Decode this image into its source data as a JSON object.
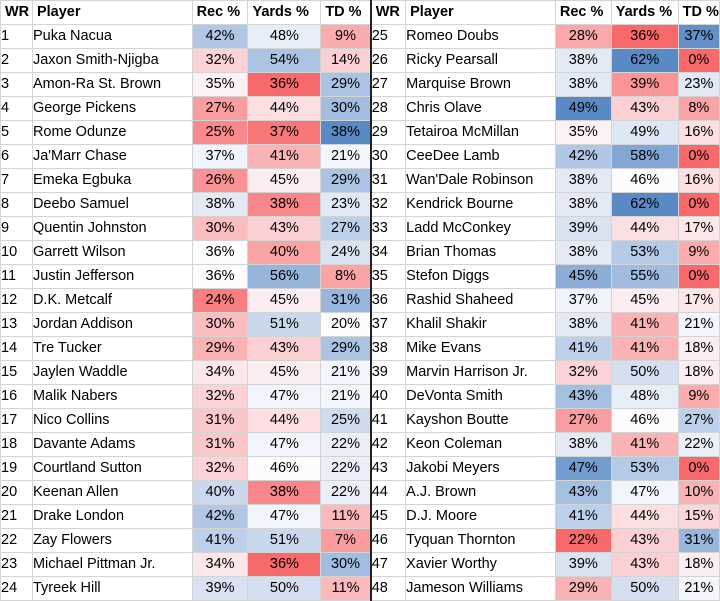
{
  "headers": [
    "WR",
    "Player",
    "Rec %",
    "Yards %",
    "TD %"
  ],
  "rows": [
    {
      "wr": "1",
      "player": "Puka Nacua",
      "rec": "42%",
      "yards": "48%",
      "td": "9%"
    },
    {
      "wr": "2",
      "player": "Jaxon Smith-Njigba",
      "rec": "32%",
      "yards": "54%",
      "td": "14%"
    },
    {
      "wr": "3",
      "player": "Amon-Ra St. Brown",
      "rec": "35%",
      "yards": "36%",
      "td": "29%"
    },
    {
      "wr": "4",
      "player": "George Pickens",
      "rec": "27%",
      "yards": "44%",
      "td": "30%"
    },
    {
      "wr": "5",
      "player": "Rome Odunze",
      "rec": "25%",
      "yards": "37%",
      "td": "38%"
    },
    {
      "wr": "6",
      "player": "Ja'Marr Chase",
      "rec": "37%",
      "yards": "41%",
      "td": "21%"
    },
    {
      "wr": "7",
      "player": "Emeka Egbuka",
      "rec": "26%",
      "yards": "45%",
      "td": "29%"
    },
    {
      "wr": "8",
      "player": "Deebo Samuel",
      "rec": "38%",
      "yards": "38%",
      "td": "23%"
    },
    {
      "wr": "9",
      "player": "Quentin Johnston",
      "rec": "30%",
      "yards": "43%",
      "td": "27%"
    },
    {
      "wr": "10",
      "player": "Garrett Wilson",
      "rec": "36%",
      "yards": "40%",
      "td": "24%"
    },
    {
      "wr": "11",
      "player": "Justin Jefferson",
      "rec": "36%",
      "yards": "56%",
      "td": "8%"
    },
    {
      "wr": "12",
      "player": "D.K. Metcalf",
      "rec": "24%",
      "yards": "45%",
      "td": "31%"
    },
    {
      "wr": "13",
      "player": "Jordan Addison",
      "rec": "30%",
      "yards": "51%",
      "td": "20%"
    },
    {
      "wr": "14",
      "player": "Tre Tucker",
      "rec": "29%",
      "yards": "43%",
      "td": "29%"
    },
    {
      "wr": "15",
      "player": "Jaylen Waddle",
      "rec": "34%",
      "yards": "45%",
      "td": "21%"
    },
    {
      "wr": "16",
      "player": "Malik Nabers",
      "rec": "32%",
      "yards": "47%",
      "td": "21%"
    },
    {
      "wr": "17",
      "player": "Nico Collins",
      "rec": "31%",
      "yards": "44%",
      "td": "25%"
    },
    {
      "wr": "18",
      "player": "Davante Adams",
      "rec": "31%",
      "yards": "47%",
      "td": "22%"
    },
    {
      "wr": "19",
      "player": "Courtland Sutton",
      "rec": "32%",
      "yards": "46%",
      "td": "22%"
    },
    {
      "wr": "20",
      "player": "Keenan Allen",
      "rec": "40%",
      "yards": "38%",
      "td": "22%"
    },
    {
      "wr": "21",
      "player": "Drake London",
      "rec": "42%",
      "yards": "47%",
      "td": "11%"
    },
    {
      "wr": "22",
      "player": "Zay Flowers",
      "rec": "41%",
      "yards": "51%",
      "td": "7%"
    },
    {
      "wr": "23",
      "player": "Michael Pittman Jr.",
      "rec": "34%",
      "yards": "36%",
      "td": "30%"
    },
    {
      "wr": "24",
      "player": "Tyreek Hill",
      "rec": "39%",
      "yards": "50%",
      "td": "11%"
    },
    {
      "wr": "25",
      "player": "Romeo Doubs",
      "rec": "28%",
      "yards": "36%",
      "td": "37%"
    },
    {
      "wr": "26",
      "player": "Ricky Pearsall",
      "rec": "38%",
      "yards": "62%",
      "td": "0%"
    },
    {
      "wr": "27",
      "player": "Marquise Brown",
      "rec": "38%",
      "yards": "39%",
      "td": "23%"
    },
    {
      "wr": "28",
      "player": "Chris Olave",
      "rec": "49%",
      "yards": "43%",
      "td": "8%"
    },
    {
      "wr": "29",
      "player": "Tetairoa McMillan",
      "rec": "35%",
      "yards": "49%",
      "td": "16%"
    },
    {
      "wr": "30",
      "player": "CeeDee Lamb",
      "rec": "42%",
      "yards": "58%",
      "td": "0%"
    },
    {
      "wr": "31",
      "player": "Wan'Dale Robinson",
      "rec": "38%",
      "yards": "46%",
      "td": "16%"
    },
    {
      "wr": "32",
      "player": "Kendrick Bourne",
      "rec": "38%",
      "yards": "62%",
      "td": "0%"
    },
    {
      "wr": "33",
      "player": "Ladd McConkey",
      "rec": "39%",
      "yards": "44%",
      "td": "17%"
    },
    {
      "wr": "34",
      "player": "Brian Thomas",
      "rec": "38%",
      "yards": "53%",
      "td": "9%"
    },
    {
      "wr": "35",
      "player": "Stefon Diggs",
      "rec": "45%",
      "yards": "55%",
      "td": "0%"
    },
    {
      "wr": "36",
      "player": "Rashid Shaheed",
      "rec": "37%",
      "yards": "45%",
      "td": "17%"
    },
    {
      "wr": "37",
      "player": "Khalil Shakir",
      "rec": "38%",
      "yards": "41%",
      "td": "21%"
    },
    {
      "wr": "38",
      "player": "Mike Evans",
      "rec": "41%",
      "yards": "41%",
      "td": "18%"
    },
    {
      "wr": "39",
      "player": "Marvin Harrison Jr.",
      "rec": "32%",
      "yards": "50%",
      "td": "18%"
    },
    {
      "wr": "40",
      "player": "DeVonta Smith",
      "rec": "43%",
      "yards": "48%",
      "td": "9%"
    },
    {
      "wr": "41",
      "player": "Kayshon Boutte",
      "rec": "27%",
      "yards": "46%",
      "td": "27%"
    },
    {
      "wr": "42",
      "player": "Keon Coleman",
      "rec": "38%",
      "yards": "41%",
      "td": "22%"
    },
    {
      "wr": "43",
      "player": "Jakobi Meyers",
      "rec": "47%",
      "yards": "53%",
      "td": "0%"
    },
    {
      "wr": "44",
      "player": "A.J. Brown",
      "rec": "43%",
      "yards": "47%",
      "td": "10%"
    },
    {
      "wr": "45",
      "player": "D.J. Moore",
      "rec": "41%",
      "yards": "44%",
      "td": "15%"
    },
    {
      "wr": "46",
      "player": "Tyquan Thornton",
      "rec": "22%",
      "yards": "43%",
      "td": "31%"
    },
    {
      "wr": "47",
      "player": "Xavier Worthy",
      "rec": "39%",
      "yards": "43%",
      "td": "18%"
    },
    {
      "wr": "48",
      "player": "Jameson Williams",
      "rec": "29%",
      "yards": "50%",
      "td": "21%"
    }
  ],
  "color_scale": {
    "low": "#f8696b",
    "mid": "#fcfcff",
    "high": "#5a8ac6",
    "rec": {
      "min": 22,
      "mid": 36,
      "max": 49
    },
    "yards": {
      "min": 36,
      "mid": 46,
      "max": 62
    },
    "td": {
      "min": 0,
      "mid": 20,
      "max": 38
    }
  }
}
